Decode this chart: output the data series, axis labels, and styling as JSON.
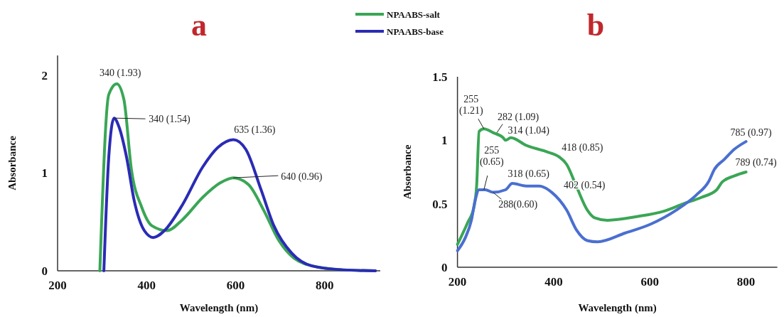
{
  "chart_data": [
    {
      "type": "line",
      "title": "a",
      "xlabel": "Wavelength (nm)",
      "ylabel": "Absorbance",
      "xlim": [
        200,
        925
      ],
      "ylim": [
        0,
        2.2
      ],
      "xticks": [
        200,
        400,
        600,
        800
      ],
      "yticks": [
        0,
        1,
        2
      ],
      "grid": false,
      "legend": "top right",
      "marker": "none",
      "line_style": "solid",
      "series": [
        {
          "name": "NPAABS-salt",
          "color": "#3aa655",
          "x": [
            295,
            315,
            333,
            349,
            366,
            389,
            412,
            446,
            480,
            526,
            566,
            595,
            629,
            663,
            697,
            731,
            783,
            840,
            914
          ],
          "values": [
            0,
            1.8,
            1.91,
            1.75,
            1.03,
            0.65,
            0.46,
            0.41,
            0.52,
            0.75,
            0.9,
            0.95,
            0.88,
            0.62,
            0.31,
            0.13,
            0.04,
            0.01,
            0
          ]
        },
        {
          "name": "NPAABS-base",
          "color": "#2b2bb5",
          "x": [
            304,
            315,
            327,
            338,
            355,
            372,
            395,
            415,
            440,
            480,
            526,
            560,
            595,
            623,
            657,
            686,
            726,
            771,
            840,
            914
          ],
          "values": [
            0,
            1.16,
            1.56,
            1.47,
            1.16,
            0.72,
            0.41,
            0.34,
            0.41,
            0.67,
            1.06,
            1.26,
            1.34,
            1.24,
            0.83,
            0.46,
            0.18,
            0.05,
            0.01,
            0
          ]
        }
      ],
      "annotations": [
        {
          "text": "340 (1.93)",
          "x": 333,
          "y": 1.91
        },
        {
          "text": "340 (1.54)",
          "x": 327,
          "y": 1.56
        },
        {
          "text": "635 (1.36)",
          "x": 595,
          "y": 1.34
        },
        {
          "text": "640 (0.96)",
          "x": 595,
          "y": 0.95
        }
      ]
    },
    {
      "type": "line",
      "title": "b",
      "xlabel": "Wavelength (nm)",
      "ylabel": "Absorbance",
      "xlim": [
        200,
        865
      ],
      "ylim": [
        0,
        1.5
      ],
      "xticks": [
        200,
        400,
        600,
        800
      ],
      "yticks": [
        0,
        0.5,
        1,
        1.5
      ],
      "grid": false,
      "marker": "none",
      "line_style": "solid",
      "series": [
        {
          "color": "#3aa655",
          "x": [
            200,
            221,
            234,
            240,
            245,
            255,
            274,
            295,
            300,
            311,
            343,
            385,
            411,
            427,
            448,
            470,
            485,
            512,
            575,
            628,
            670,
            707,
            739,
            750,
            776,
            800
          ],
          "values": [
            0.18,
            0.35,
            0.47,
            0.65,
            1.07,
            1.09,
            1.06,
            1.02,
            1,
            1.02,
            0.96,
            0.91,
            0.87,
            0.81,
            0.63,
            0.45,
            0.39,
            0.37,
            0.4,
            0.44,
            0.5,
            0.55,
            0.61,
            0.67,
            0.72,
            0.75
          ]
        },
        {
          "color": "#4a6fd0",
          "x": [
            200,
            216,
            229,
            237,
            245,
            258,
            274,
            300,
            314,
            343,
            369,
            396,
            427,
            448,
            470,
            491,
            549,
            602,
            655,
            697,
            723,
            734,
            755,
            776,
            800
          ],
          "values": [
            0.13,
            0.23,
            0.37,
            0.53,
            0.61,
            0.61,
            0.59,
            0.61,
            0.66,
            0.64,
            0.64,
            0.59,
            0.45,
            0.29,
            0.21,
            0.2,
            0.27,
            0.34,
            0.45,
            0.57,
            0.68,
            0.77,
            0.85,
            0.93,
            0.99
          ]
        }
      ],
      "annotations": [
        {
          "text": "255\n(1.21)",
          "x": 255,
          "y": 1.09
        },
        {
          "text": "282 (1.09)",
          "x": 282,
          "y": 1.06
        },
        {
          "text": "314 (1.04)",
          "x": 311,
          "y": 1.02
        },
        {
          "text": "418 (0.85)",
          "x": 411,
          "y": 0.87
        },
        {
          "text": "785 (0.97)",
          "x": 800,
          "y": 0.99
        },
        {
          "text": "789 (0.74)",
          "x": 800,
          "y": 0.75
        },
        {
          "text": "255\n(0.65)",
          "x": 255,
          "y": 0.61
        },
        {
          "text": "318 (0.65)",
          "x": 314,
          "y": 0.66
        },
        {
          "text": "402 (0.54)",
          "x": 396,
          "y": 0.59
        },
        {
          "text": "288(0.60)",
          "x": 274,
          "y": 0.59
        }
      ]
    }
  ]
}
